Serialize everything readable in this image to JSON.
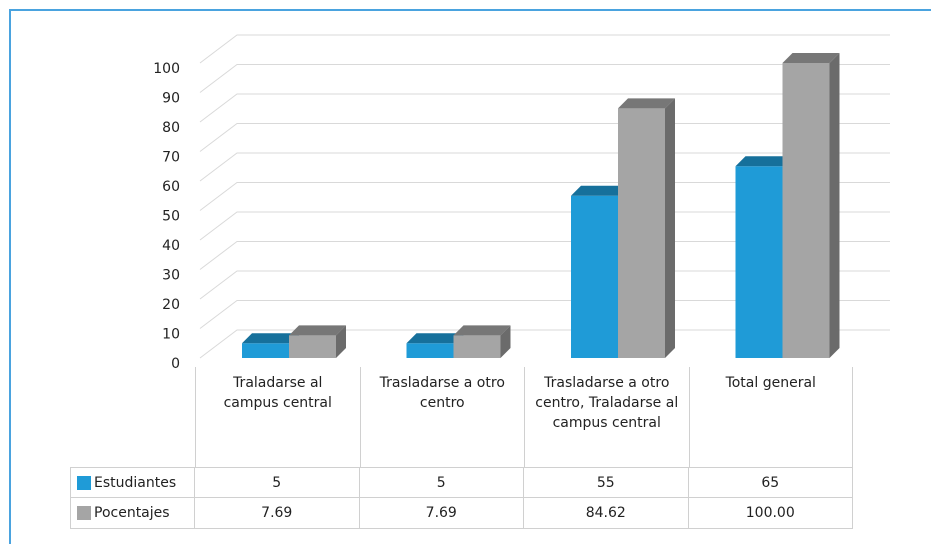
{
  "chart_data": {
    "type": "bar3d",
    "categories": [
      "Traladarse al campus central",
      "Trasladarse a otro centro",
      "Trasladarse a otro centro, Traladarse al campus central",
      "Total general"
    ],
    "series": [
      {
        "name": "Estudiantes",
        "color": "#1f9bd7",
        "values": [
          5,
          5,
          55,
          65
        ]
      },
      {
        "name": "Pocentajes",
        "color": "#a5a5a5",
        "values": [
          7.69,
          7.69,
          84.62,
          100
        ],
        "value_labels": [
          "7.69",
          "7.69",
          "84.62",
          "100.00"
        ]
      }
    ],
    "ylim": [
      0,
      100
    ],
    "yticks": [
      0,
      10,
      20,
      30,
      40,
      50,
      60,
      70,
      80,
      90,
      100
    ],
    "grid": true,
    "data_table": true
  }
}
